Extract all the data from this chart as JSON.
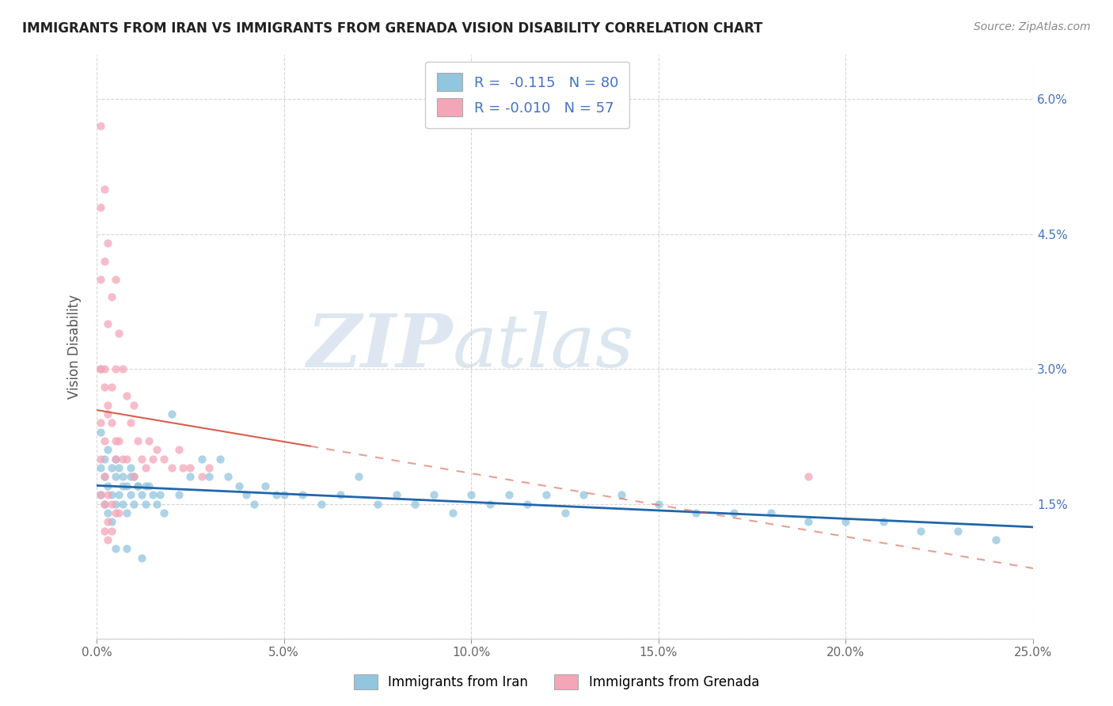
{
  "title": "IMMIGRANTS FROM IRAN VS IMMIGRANTS FROM GRENADA VISION DISABILITY CORRELATION CHART",
  "source": "Source: ZipAtlas.com",
  "ylabel": "Vision Disability",
  "xlabel_iran": "Immigrants from Iran",
  "xlabel_grenada": "Immigrants from Grenada",
  "legend_iran": {
    "R": "-0.115",
    "N": "80"
  },
  "legend_grenada": {
    "R": "-0.010",
    "N": "57"
  },
  "color_iran": "#92c5de",
  "color_grenada": "#f4a6b8",
  "line_color_iran": "#2166ac",
  "line_color_grenada": "#d6604d",
  "background_color": "#ffffff",
  "watermark_zip": "ZIP",
  "watermark_atlas": "atlas",
  "xlim": [
    0.0,
    0.25
  ],
  "ylim": [
    0.0,
    0.065
  ],
  "x_ticks": [
    0.0,
    0.05,
    0.1,
    0.15,
    0.2,
    0.25
  ],
  "x_tick_labels": [
    "0.0%",
    "5.0%",
    "10.0%",
    "15.0%",
    "20.0%",
    "25.0%"
  ],
  "y_ticks": [
    0.0,
    0.015,
    0.03,
    0.045,
    0.06
  ],
  "y_tick_labels": [
    "",
    "1.5%",
    "3.0%",
    "4.5%",
    "6.0%"
  ],
  "iran_x": [
    0.001,
    0.001,
    0.001,
    0.002,
    0.002,
    0.002,
    0.003,
    0.003,
    0.003,
    0.004,
    0.004,
    0.004,
    0.005,
    0.005,
    0.005,
    0.006,
    0.006,
    0.007,
    0.007,
    0.008,
    0.008,
    0.009,
    0.009,
    0.01,
    0.01,
    0.011,
    0.012,
    0.013,
    0.014,
    0.015,
    0.016,
    0.017,
    0.018,
    0.02,
    0.022,
    0.025,
    0.028,
    0.03,
    0.033,
    0.035,
    0.038,
    0.04,
    0.042,
    0.045,
    0.048,
    0.05,
    0.055,
    0.06,
    0.065,
    0.07,
    0.075,
    0.08,
    0.085,
    0.09,
    0.095,
    0.1,
    0.105,
    0.11,
    0.115,
    0.12,
    0.125,
    0.13,
    0.14,
    0.15,
    0.16,
    0.17,
    0.18,
    0.19,
    0.2,
    0.21,
    0.22,
    0.23,
    0.24,
    0.007,
    0.009,
    0.011,
    0.013,
    0.005,
    0.008,
    0.012
  ],
  "iran_y": [
    0.023,
    0.019,
    0.016,
    0.02,
    0.018,
    0.015,
    0.021,
    0.017,
    0.014,
    0.019,
    0.016,
    0.013,
    0.02,
    0.018,
    0.015,
    0.019,
    0.016,
    0.018,
    0.015,
    0.017,
    0.014,
    0.019,
    0.016,
    0.018,
    0.015,
    0.017,
    0.016,
    0.015,
    0.017,
    0.016,
    0.015,
    0.016,
    0.014,
    0.025,
    0.016,
    0.018,
    0.02,
    0.018,
    0.02,
    0.018,
    0.017,
    0.016,
    0.015,
    0.017,
    0.016,
    0.016,
    0.016,
    0.015,
    0.016,
    0.018,
    0.015,
    0.016,
    0.015,
    0.016,
    0.014,
    0.016,
    0.015,
    0.016,
    0.015,
    0.016,
    0.014,
    0.016,
    0.016,
    0.015,
    0.014,
    0.014,
    0.014,
    0.013,
    0.013,
    0.013,
    0.012,
    0.012,
    0.011,
    0.017,
    0.018,
    0.017,
    0.017,
    0.01,
    0.01,
    0.009
  ],
  "grenada_x": [
    0.001,
    0.001,
    0.001,
    0.001,
    0.001,
    0.002,
    0.002,
    0.002,
    0.002,
    0.003,
    0.003,
    0.003,
    0.004,
    0.004,
    0.005,
    0.005,
    0.005,
    0.006,
    0.006,
    0.007,
    0.007,
    0.008,
    0.008,
    0.009,
    0.01,
    0.01,
    0.011,
    0.012,
    0.014,
    0.015,
    0.016,
    0.018,
    0.02,
    0.022,
    0.025,
    0.028,
    0.03,
    0.001,
    0.002,
    0.003,
    0.004,
    0.005,
    0.001,
    0.002,
    0.003,
    0.004,
    0.005,
    0.006,
    0.001,
    0.002,
    0.003,
    0.002,
    0.003,
    0.004,
    0.013,
    0.023,
    0.19
  ],
  "grenada_y": [
    0.057,
    0.048,
    0.04,
    0.03,
    0.024,
    0.05,
    0.042,
    0.03,
    0.022,
    0.044,
    0.035,
    0.025,
    0.038,
    0.028,
    0.04,
    0.03,
    0.02,
    0.034,
    0.022,
    0.03,
    0.02,
    0.027,
    0.02,
    0.024,
    0.026,
    0.018,
    0.022,
    0.02,
    0.022,
    0.02,
    0.021,
    0.02,
    0.019,
    0.021,
    0.019,
    0.018,
    0.019,
    0.03,
    0.028,
    0.026,
    0.024,
    0.022,
    0.02,
    0.018,
    0.016,
    0.015,
    0.014,
    0.014,
    0.016,
    0.015,
    0.013,
    0.012,
    0.011,
    0.012,
    0.019,
    0.019,
    0.018
  ],
  "grenada_line_xmax": 0.057
}
